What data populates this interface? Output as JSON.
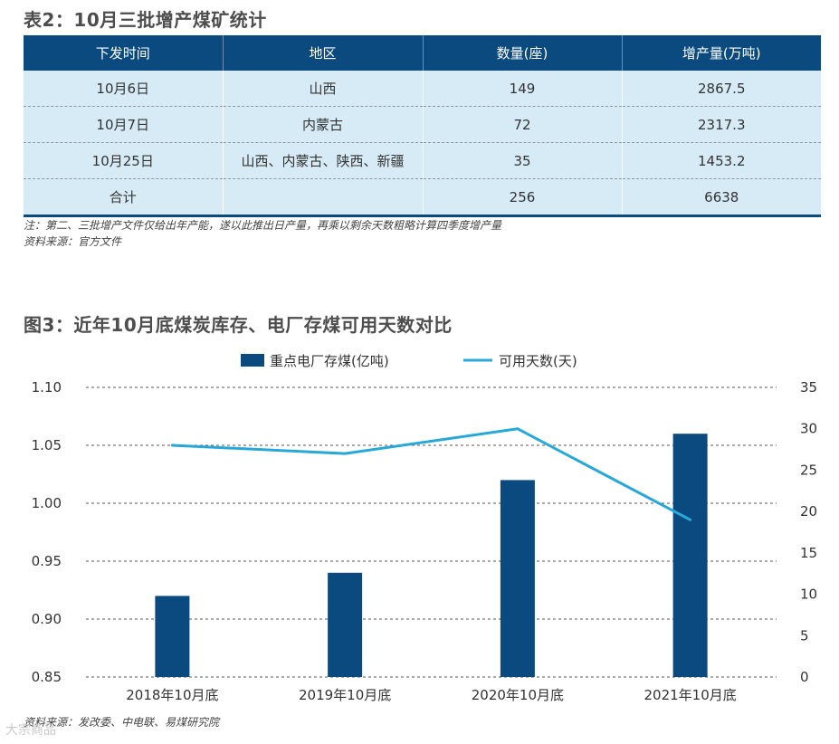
{
  "table_title": "表2：10月三批增产煤矿统计",
  "table": {
    "headers": [
      "下发时间",
      "地区",
      "数量(座)",
      "增产量(万吨)"
    ],
    "rows": [
      [
        "10月6日",
        "山西",
        "149",
        "2867.5"
      ],
      [
        "10月7日",
        "内蒙古",
        "72",
        "2317.3"
      ],
      [
        "10月25日",
        "山西、内蒙古、陕西、新疆",
        "35",
        "1453.2"
      ],
      [
        "合计",
        "",
        "256",
        "6638"
      ]
    ]
  },
  "table_note": "注：第二、三批增产文件仅给出年产能，遂以此推出日产量，再乘以剩余天数粗略计算四季度增产量",
  "table_source": "资料来源：官方文件",
  "chart_title": "图3：近年10月底煤炭库存、电厂存煤可用天数对比",
  "chart_source": "资料来源：发改委、中电联、易煤研究院",
  "watermark": "大宗商品",
  "colors": {
    "bar": "#0b4a7e",
    "line": "#28a8d8",
    "header_bg": "#0b4a7e",
    "row_bg": "#d6ebf6"
  },
  "chart_data": {
    "type": "bar+line",
    "categories": [
      "2018年10月底",
      "2019年10月底",
      "2020年10月底",
      "2021年10月底"
    ],
    "series": [
      {
        "name": "重点电厂存煤(亿吨)",
        "type": "bar",
        "axis": "left",
        "values": [
          0.92,
          0.94,
          1.02,
          1.06
        ]
      },
      {
        "name": "可用天数(天)",
        "type": "line",
        "axis": "right",
        "values": [
          28,
          27,
          30,
          19
        ]
      }
    ],
    "y_left": {
      "range": [
        0.85,
        1.1
      ],
      "ticks": [
        "0.85",
        "0.90",
        "0.95",
        "1.00",
        "1.05",
        "1.10"
      ]
    },
    "y_right": {
      "range": [
        0,
        35
      ],
      "ticks": [
        "0",
        "5",
        "10",
        "15",
        "20",
        "25",
        "30",
        "35"
      ]
    },
    "grid": "dashed horizontal",
    "legend_position": "top"
  }
}
